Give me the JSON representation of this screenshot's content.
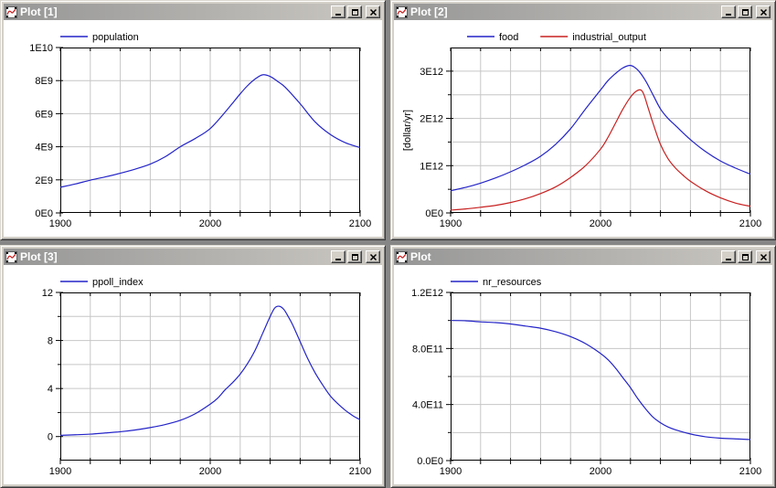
{
  "app": {
    "desktop_background": "#868686",
    "window_face": "#d4d0c8"
  },
  "colors": {
    "grid": "#c6c6c6",
    "axis": "#000000",
    "series_blue": "#2424c8",
    "series_red": "#c82020",
    "titlebar_start": "#969696",
    "titlebar_end": "#cbc8c2",
    "title_text": "#ffffff"
  },
  "windows": [
    {
      "title": "Plot [1]"
    },
    {
      "title": "Plot [2]"
    },
    {
      "title": "Plot [3]"
    },
    {
      "title": "Plot"
    }
  ],
  "window_controls": [
    "minimize",
    "maximize",
    "close"
  ],
  "icons": {
    "titlebar": "plot-curve-icon",
    "buttons": [
      "minimize-icon",
      "maximize-icon",
      "close-icon"
    ]
  },
  "chart_data": [
    {
      "type": "line",
      "window_title": "Plot [1]",
      "x": {
        "min": 1900,
        "max": 2100,
        "tick_step": 20,
        "grid_step": 20,
        "labeled_ticks": [
          1900,
          2000,
          2100
        ]
      },
      "y": {
        "min": 0,
        "max": 10000000000.0,
        "grid_step": 2000000000.0,
        "minor_step": null,
        "unit": null,
        "ticks": [
          {
            "value": 10000000000.0,
            "label": "1E10"
          },
          {
            "value": 8000000000.0,
            "label": "8E9"
          },
          {
            "value": 6000000000.0,
            "label": "6E9"
          },
          {
            "value": 4000000000.0,
            "label": "4E9"
          },
          {
            "value": 2000000000.0,
            "label": "2E9"
          },
          {
            "value": 0,
            "label": "0E0"
          }
        ]
      },
      "legend": {
        "position": "top-left",
        "indent": 0
      },
      "series": [
        {
          "name": "population",
          "color": "#2424c8",
          "points": [
            [
              1900,
              1550000000.0
            ],
            [
              1910,
              1750000000.0
            ],
            [
              1920,
              1980000000.0
            ],
            [
              1930,
              2180000000.0
            ],
            [
              1940,
              2400000000.0
            ],
            [
              1950,
              2650000000.0
            ],
            [
              1960,
              2950000000.0
            ],
            [
              1970,
              3400000000.0
            ],
            [
              1980,
              4000000000.0
            ],
            [
              1990,
              4500000000.0
            ],
            [
              2000,
              5100000000.0
            ],
            [
              2010,
              6100000000.0
            ],
            [
              2020,
              7200000000.0
            ],
            [
              2025,
              7700000000.0
            ],
            [
              2030,
              8100000000.0
            ],
            [
              2035,
              8350000000.0
            ],
            [
              2040,
              8250000000.0
            ],
            [
              2045,
              7950000000.0
            ],
            [
              2050,
              7600000000.0
            ],
            [
              2060,
              6600000000.0
            ],
            [
              2070,
              5500000000.0
            ],
            [
              2080,
              4750000000.0
            ],
            [
              2090,
              4250000000.0
            ],
            [
              2100,
              3950000000.0
            ]
          ]
        }
      ]
    },
    {
      "type": "line",
      "window_title": "Plot [2]",
      "x": {
        "min": 1900,
        "max": 2100,
        "tick_step": 20,
        "grid_step": 20,
        "labeled_ticks": [
          1900,
          2000,
          2100
        ]
      },
      "y": {
        "min": 0,
        "max": 3500000000000.0,
        "grid_step": 500000000000.0,
        "minor_step": 500000000000.0,
        "unit": "[dollar/yr]",
        "ticks": [
          {
            "value": 3000000000000.0,
            "label": "3E12"
          },
          {
            "value": 2000000000000.0,
            "label": "2E12"
          },
          {
            "value": 1000000000000.0,
            "label": "1E12"
          },
          {
            "value": 0,
            "label": "0E0"
          }
        ]
      },
      "legend": {
        "position": "top-left",
        "indent": 18
      },
      "series": [
        {
          "name": "food",
          "color": "#2424c8",
          "points": [
            [
              1900,
              470000000000.0
            ],
            [
              1910,
              540000000000.0
            ],
            [
              1920,
              630000000000.0
            ],
            [
              1930,
              740000000000.0
            ],
            [
              1940,
              870000000000.0
            ],
            [
              1950,
              1020000000000.0
            ],
            [
              1960,
              1200000000000.0
            ],
            [
              1970,
              1450000000000.0
            ],
            [
              1980,
              1780000000000.0
            ],
            [
              1990,
              2200000000000.0
            ],
            [
              2000,
              2600000000000.0
            ],
            [
              2005,
              2800000000000.0
            ],
            [
              2010,
              2950000000000.0
            ],
            [
              2015,
              3070000000000.0
            ],
            [
              2020,
              3120000000000.0
            ],
            [
              2025,
              3020000000000.0
            ],
            [
              2030,
              2800000000000.0
            ],
            [
              2035,
              2500000000000.0
            ],
            [
              2040,
              2200000000000.0
            ],
            [
              2045,
              2000000000000.0
            ],
            [
              2050,
              1850000000000.0
            ],
            [
              2060,
              1550000000000.0
            ],
            [
              2070,
              1300000000000.0
            ],
            [
              2080,
              1100000000000.0
            ],
            [
              2090,
              950000000000.0
            ],
            [
              2100,
              820000000000.0
            ]
          ]
        },
        {
          "name": "industrial_output",
          "color": "#c82020",
          "points": [
            [
              1900,
              60000000000.0
            ],
            [
              1910,
              85000000000.0
            ],
            [
              1920,
              120000000000.0
            ],
            [
              1930,
              160000000000.0
            ],
            [
              1940,
              220000000000.0
            ],
            [
              1950,
              300000000000.0
            ],
            [
              1960,
              410000000000.0
            ],
            [
              1970,
              550000000000.0
            ],
            [
              1980,
              750000000000.0
            ],
            [
              1990,
              1000000000000.0
            ],
            [
              2000,
              1350000000000.0
            ],
            [
              2005,
              1600000000000.0
            ],
            [
              2010,
              1900000000000.0
            ],
            [
              2015,
              2200000000000.0
            ],
            [
              2020,
              2450000000000.0
            ],
            [
              2024,
              2580000000000.0
            ],
            [
              2027,
              2600000000000.0
            ],
            [
              2029,
              2500000000000.0
            ],
            [
              2032,
              2200000000000.0
            ],
            [
              2035,
              1900000000000.0
            ],
            [
              2040,
              1450000000000.0
            ],
            [
              2045,
              1150000000000.0
            ],
            [
              2050,
              950000000000.0
            ],
            [
              2055,
              800000000000.0
            ],
            [
              2060,
              670000000000.0
            ],
            [
              2070,
              470000000000.0
            ],
            [
              2080,
              320000000000.0
            ],
            [
              2090,
              210000000000.0
            ],
            [
              2100,
              140000000000.0
            ]
          ]
        }
      ]
    },
    {
      "type": "line",
      "window_title": "Plot [3]",
      "x": {
        "min": 1900,
        "max": 2100,
        "tick_step": 20,
        "grid_step": 20,
        "labeled_ticks": [
          1900,
          2000,
          2100
        ]
      },
      "y": {
        "min": -2,
        "max": 12,
        "grid_step": 2,
        "minor_step": 2,
        "unit": null,
        "ticks": [
          {
            "value": 12,
            "label": "12"
          },
          {
            "value": 8,
            "label": "8"
          },
          {
            "value": 4,
            "label": "4"
          },
          {
            "value": 0,
            "label": "0"
          }
        ]
      },
      "legend": {
        "position": "top-left",
        "indent": 0
      },
      "series": [
        {
          "name": "ppoll_index",
          "color": "#2424c8",
          "points": [
            [
              1900,
              0.1
            ],
            [
              1910,
              0.15
            ],
            [
              1920,
              0.2
            ],
            [
              1930,
              0.3
            ],
            [
              1940,
              0.4
            ],
            [
              1950,
              0.55
            ],
            [
              1960,
              0.75
            ],
            [
              1970,
              1.0
            ],
            [
              1980,
              1.35
            ],
            [
              1990,
              1.9
            ],
            [
              2000,
              2.7
            ],
            [
              2005,
              3.2
            ],
            [
              2010,
              3.9
            ],
            [
              2015,
              4.5
            ],
            [
              2020,
              5.2
            ],
            [
              2025,
              6.1
            ],
            [
              2030,
              7.2
            ],
            [
              2035,
              8.6
            ],
            [
              2040,
              10.0
            ],
            [
              2043,
              10.7
            ],
            [
              2046,
              10.85
            ],
            [
              2049,
              10.6
            ],
            [
              2052,
              10.0
            ],
            [
              2055,
              9.3
            ],
            [
              2060,
              7.9
            ],
            [
              2065,
              6.5
            ],
            [
              2070,
              5.3
            ],
            [
              2075,
              4.3
            ],
            [
              2080,
              3.4
            ],
            [
              2085,
              2.75
            ],
            [
              2090,
              2.2
            ],
            [
              2095,
              1.75
            ],
            [
              2100,
              1.4
            ]
          ]
        }
      ]
    },
    {
      "type": "line",
      "window_title": "Plot",
      "x": {
        "min": 1900,
        "max": 2100,
        "tick_step": 20,
        "grid_step": 20,
        "labeled_ticks": [
          1900,
          2000,
          2100
        ]
      },
      "y": {
        "min": 0,
        "max": 1200000000000.0,
        "grid_step": 200000000000.0,
        "minor_step": 200000000000.0,
        "unit": null,
        "ticks": [
          {
            "value": 1200000000000.0,
            "label": "1.2E12"
          },
          {
            "value": 800000000000.0,
            "label": "8.0E11"
          },
          {
            "value": 400000000000.0,
            "label": "4.0E11"
          },
          {
            "value": 0,
            "label": "0.0E0"
          }
        ]
      },
      "legend": {
        "position": "top-left",
        "indent": 0
      },
      "series": [
        {
          "name": "nr_resources",
          "color": "#2424c8",
          "points": [
            [
              1900,
              1000000000000.0
            ],
            [
              1910,
              998000000000.0
            ],
            [
              1920,
              990000000000.0
            ],
            [
              1930,
              985000000000.0
            ],
            [
              1940,
              975000000000.0
            ],
            [
              1950,
              960000000000.0
            ],
            [
              1960,
              945000000000.0
            ],
            [
              1970,
              920000000000.0
            ],
            [
              1980,
              885000000000.0
            ],
            [
              1990,
              835000000000.0
            ],
            [
              2000,
              765000000000.0
            ],
            [
              2005,
              720000000000.0
            ],
            [
              2010,
              660000000000.0
            ],
            [
              2015,
              590000000000.0
            ],
            [
              2020,
              520000000000.0
            ],
            [
              2025,
              440000000000.0
            ],
            [
              2030,
              370000000000.0
            ],
            [
              2035,
              310000000000.0
            ],
            [
              2040,
              270000000000.0
            ],
            [
              2045,
              240000000000.0
            ],
            [
              2050,
              220000000000.0
            ],
            [
              2060,
              190000000000.0
            ],
            [
              2070,
              170000000000.0
            ],
            [
              2080,
              160000000000.0
            ],
            [
              2090,
              155000000000.0
            ],
            [
              2100,
              150000000000.0
            ]
          ]
        }
      ]
    }
  ]
}
